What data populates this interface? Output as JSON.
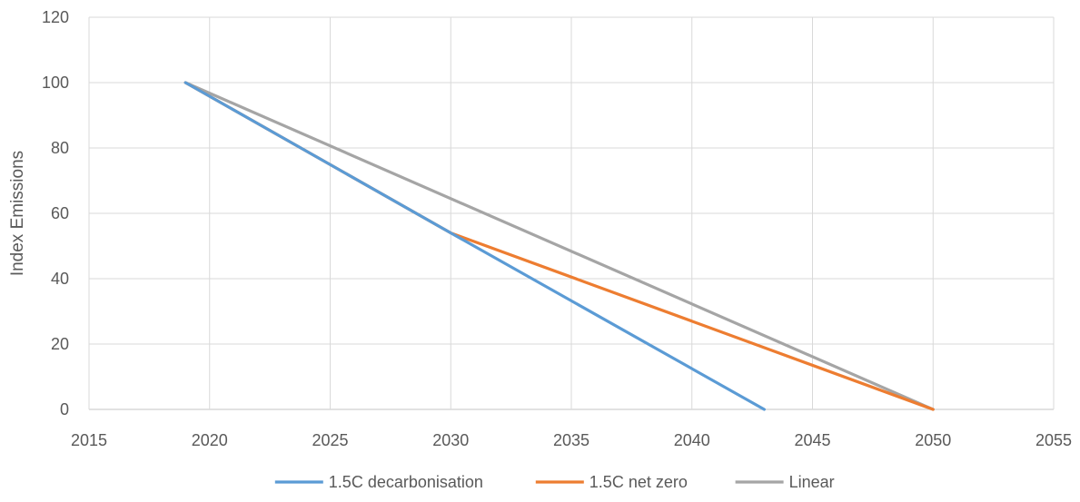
{
  "chart_data": {
    "type": "line",
    "title": "",
    "xlabel": "",
    "ylabel": "Index Emissions",
    "xlim": [
      2015,
      2055
    ],
    "ylim": [
      0,
      120
    ],
    "xticks": [
      2015,
      2020,
      2025,
      2030,
      2035,
      2040,
      2045,
      2050,
      2055
    ],
    "yticks": [
      0,
      20,
      40,
      60,
      80,
      100,
      120
    ],
    "grid": true,
    "legend_position": "bottom",
    "series": [
      {
        "name": "1.5C decarbonisation",
        "color": "#5B9BD5",
        "points": [
          [
            2019,
            100
          ],
          [
            2030,
            54
          ],
          [
            2043,
            0
          ]
        ]
      },
      {
        "name": "1.5C net zero",
        "color": "#ED7D31",
        "points": [
          [
            2019,
            100
          ],
          [
            2030,
            54
          ],
          [
            2050,
            0
          ]
        ]
      },
      {
        "name": "Linear",
        "color": "#A5A5A5",
        "points": [
          [
            2019,
            100
          ],
          [
            2050,
            0
          ]
        ]
      }
    ]
  }
}
